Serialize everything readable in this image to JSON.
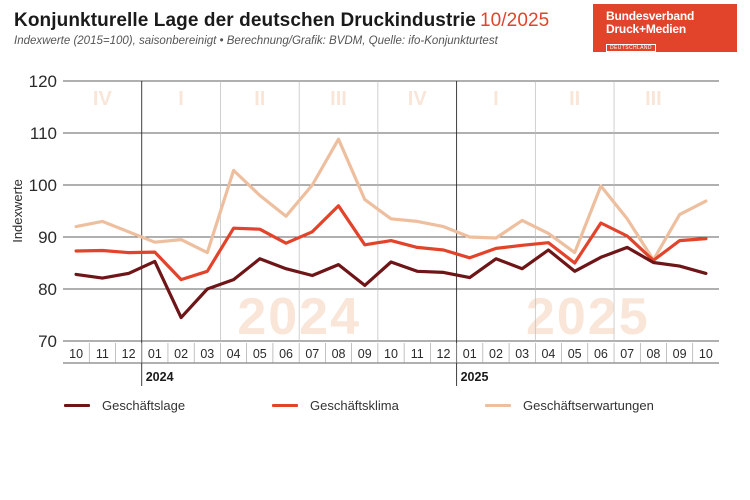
{
  "header": {
    "title": "Konjunkturelle Lage der deutschen Druckindustrie",
    "title_period": "10/2025",
    "subtitle": "Indexwerte (2015=100), saisonbereinigt • Berechnung/Grafik: BVDM, Quelle: ifo-Konjunkturtest"
  },
  "logo": {
    "line1": "Bundesverband",
    "line2": "Druck+Medien",
    "line3": "DEUTSCHLAND"
  },
  "colors": {
    "accent": "#e2432b",
    "lage": "#6e1517",
    "klima": "#e2432b",
    "erwartungen": "#eebf9f",
    "watermark": "#f9e6d8"
  },
  "chart_data": {
    "type": "line",
    "ylabel": "Indexwerte",
    "ylim": [
      70,
      120
    ],
    "yticks": [
      70,
      80,
      90,
      100,
      110,
      120
    ],
    "categories": [
      "10",
      "11",
      "12",
      "01",
      "02",
      "03",
      "04",
      "05",
      "06",
      "07",
      "08",
      "09",
      "10",
      "11",
      "12",
      "01",
      "02",
      "03",
      "04",
      "05",
      "06",
      "07",
      "08",
      "09",
      "10"
    ],
    "year_labels": [
      {
        "label": "2024",
        "index": 3
      },
      {
        "label": "2025",
        "index": 15
      }
    ],
    "quarters": [
      {
        "label": "IV",
        "start": 0,
        "end": 2
      },
      {
        "label": "I",
        "start": 3,
        "end": 5
      },
      {
        "label": "II",
        "start": 6,
        "end": 8
      },
      {
        "label": "III",
        "start": 9,
        "end": 11
      },
      {
        "label": "IV",
        "start": 12,
        "end": 14
      },
      {
        "label": "I",
        "start": 15,
        "end": 17
      },
      {
        "label": "II",
        "start": 18,
        "end": 20
      },
      {
        "label": "III",
        "start": 21,
        "end": 23
      }
    ],
    "year_watermarks": [
      {
        "label": "2024",
        "start": 3,
        "end": 14
      },
      {
        "label": "2025",
        "start": 15,
        "end": 24
      }
    ],
    "series": [
      {
        "name": "Geschäftslage",
        "key": "lage",
        "values": [
          82.8,
          82.1,
          83.0,
          85.3,
          74.5,
          80.0,
          81.8,
          85.8,
          83.9,
          82.6,
          84.7,
          80.7,
          85.2,
          83.4,
          83.2,
          82.2,
          85.8,
          83.9,
          87.5,
          83.4,
          86.1,
          88.0,
          85.1,
          84.4,
          83.0
        ]
      },
      {
        "name": "Geschäftsklima",
        "key": "klima",
        "values": [
          87.3,
          87.4,
          87.0,
          87.1,
          81.8,
          83.4,
          91.7,
          91.5,
          88.8,
          91.0,
          96.0,
          88.5,
          89.3,
          88.0,
          87.5,
          86.0,
          87.8,
          88.4,
          88.9,
          85.0,
          92.7,
          90.2,
          85.5,
          89.3,
          89.7
        ]
      },
      {
        "name": "Geschäftserwartungen",
        "key": "erwartungen",
        "values": [
          92.0,
          93.0,
          91.0,
          89.0,
          89.5,
          87.0,
          102.8,
          98.0,
          94.0,
          100.0,
          108.8,
          97.2,
          93.5,
          93.0,
          92.0,
          90.0,
          89.8,
          93.2,
          90.7,
          87.0,
          99.8,
          93.5,
          85.6,
          94.3,
          96.9
        ]
      }
    ]
  }
}
